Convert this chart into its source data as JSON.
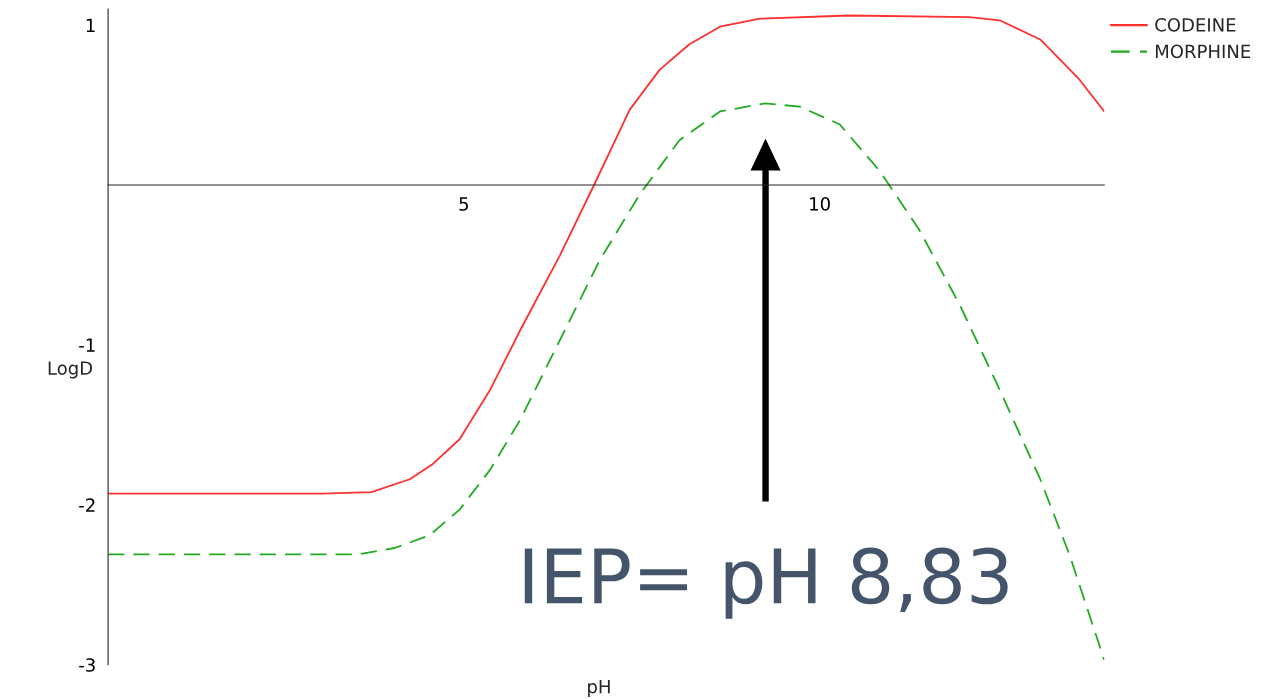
{
  "chart_data": {
    "type": "line",
    "xlabel": "pH",
    "ylabel": "LogD",
    "xlim": [
      0,
      14
    ],
    "ylim": [
      -3,
      1.1
    ],
    "xticks": [
      5,
      10
    ],
    "yticks": [
      -3,
      -2,
      -1,
      1
    ],
    "grid": false,
    "legend": "top right",
    "marker": "none",
    "series": [
      {
        "name": "CODEINE",
        "color": "#ff3030",
        "line_style": "solid",
        "x": [
          0,
          3.0,
          3.7,
          4.24,
          4.55,
          4.94,
          5.37,
          5.79,
          6.35,
          6.83,
          7.33,
          7.75,
          8.17,
          8.6,
          9.16,
          10.4,
          12.1,
          12.53,
          13.1,
          13.65,
          14
        ],
        "values": [
          -1.93,
          -1.93,
          -1.92,
          -1.84,
          -1.75,
          -1.59,
          -1.28,
          -0.91,
          -0.44,
          0,
          0.47,
          0.72,
          0.88,
          0.99,
          1.04,
          1.06,
          1.05,
          1.03,
          0.91,
          0.66,
          0.46
        ]
      },
      {
        "name": "MORPHINE",
        "color": "#22aa22",
        "line_style": "dashed",
        "x": [
          0,
          3.5,
          4.03,
          4.52,
          4.94,
          5.37,
          5.79,
          6.35,
          6.91,
          7.47,
          8.03,
          8.6,
          9.23,
          9.72,
          10.28,
          10.84,
          11.4,
          11.97,
          12.53,
          13.1,
          13.51,
          14
        ],
        "values": [
          -2.31,
          -2.31,
          -2.27,
          -2.19,
          -2.03,
          -1.78,
          -1.47,
          -0.97,
          -0.47,
          -0.06,
          0.28,
          0.46,
          0.51,
          0.49,
          0.38,
          0.09,
          -0.28,
          -0.75,
          -1.28,
          -1.84,
          -2.31,
          -2.97
        ]
      }
    ],
    "annotations": [
      "IEP= pH 8,83"
    ]
  }
}
